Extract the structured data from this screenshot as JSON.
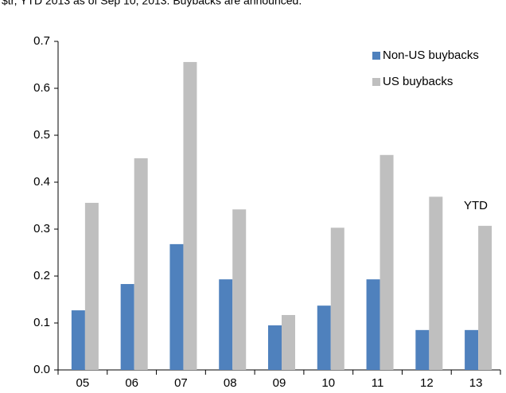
{
  "chart_data": {
    "type": "bar",
    "subtitle": "$tr, YTD 2013 as of Sep 10, 2013. Buybacks are announced.",
    "categories": [
      "05",
      "06",
      "07",
      "08",
      "09",
      "10",
      "11",
      "12",
      "13"
    ],
    "series": [
      {
        "name": "Non-US buybacks",
        "color": "#4f81bd",
        "values": [
          0.127,
          0.183,
          0.268,
          0.193,
          0.095,
          0.137,
          0.193,
          0.085,
          0.085
        ]
      },
      {
        "name": "US buybacks",
        "color": "#bfbfbf",
        "values": [
          0.356,
          0.451,
          0.656,
          0.342,
          0.117,
          0.303,
          0.458,
          0.369,
          0.307
        ]
      }
    ],
    "annotation": "YTD",
    "ylim": [
      0,
      0.7
    ],
    "yticks": [
      {
        "value": 0,
        "label": "0.0"
      },
      0.1,
      0.2,
      0.3,
      0.4,
      0.5,
      0.6,
      0.7
    ],
    "legend": "top-right"
  }
}
